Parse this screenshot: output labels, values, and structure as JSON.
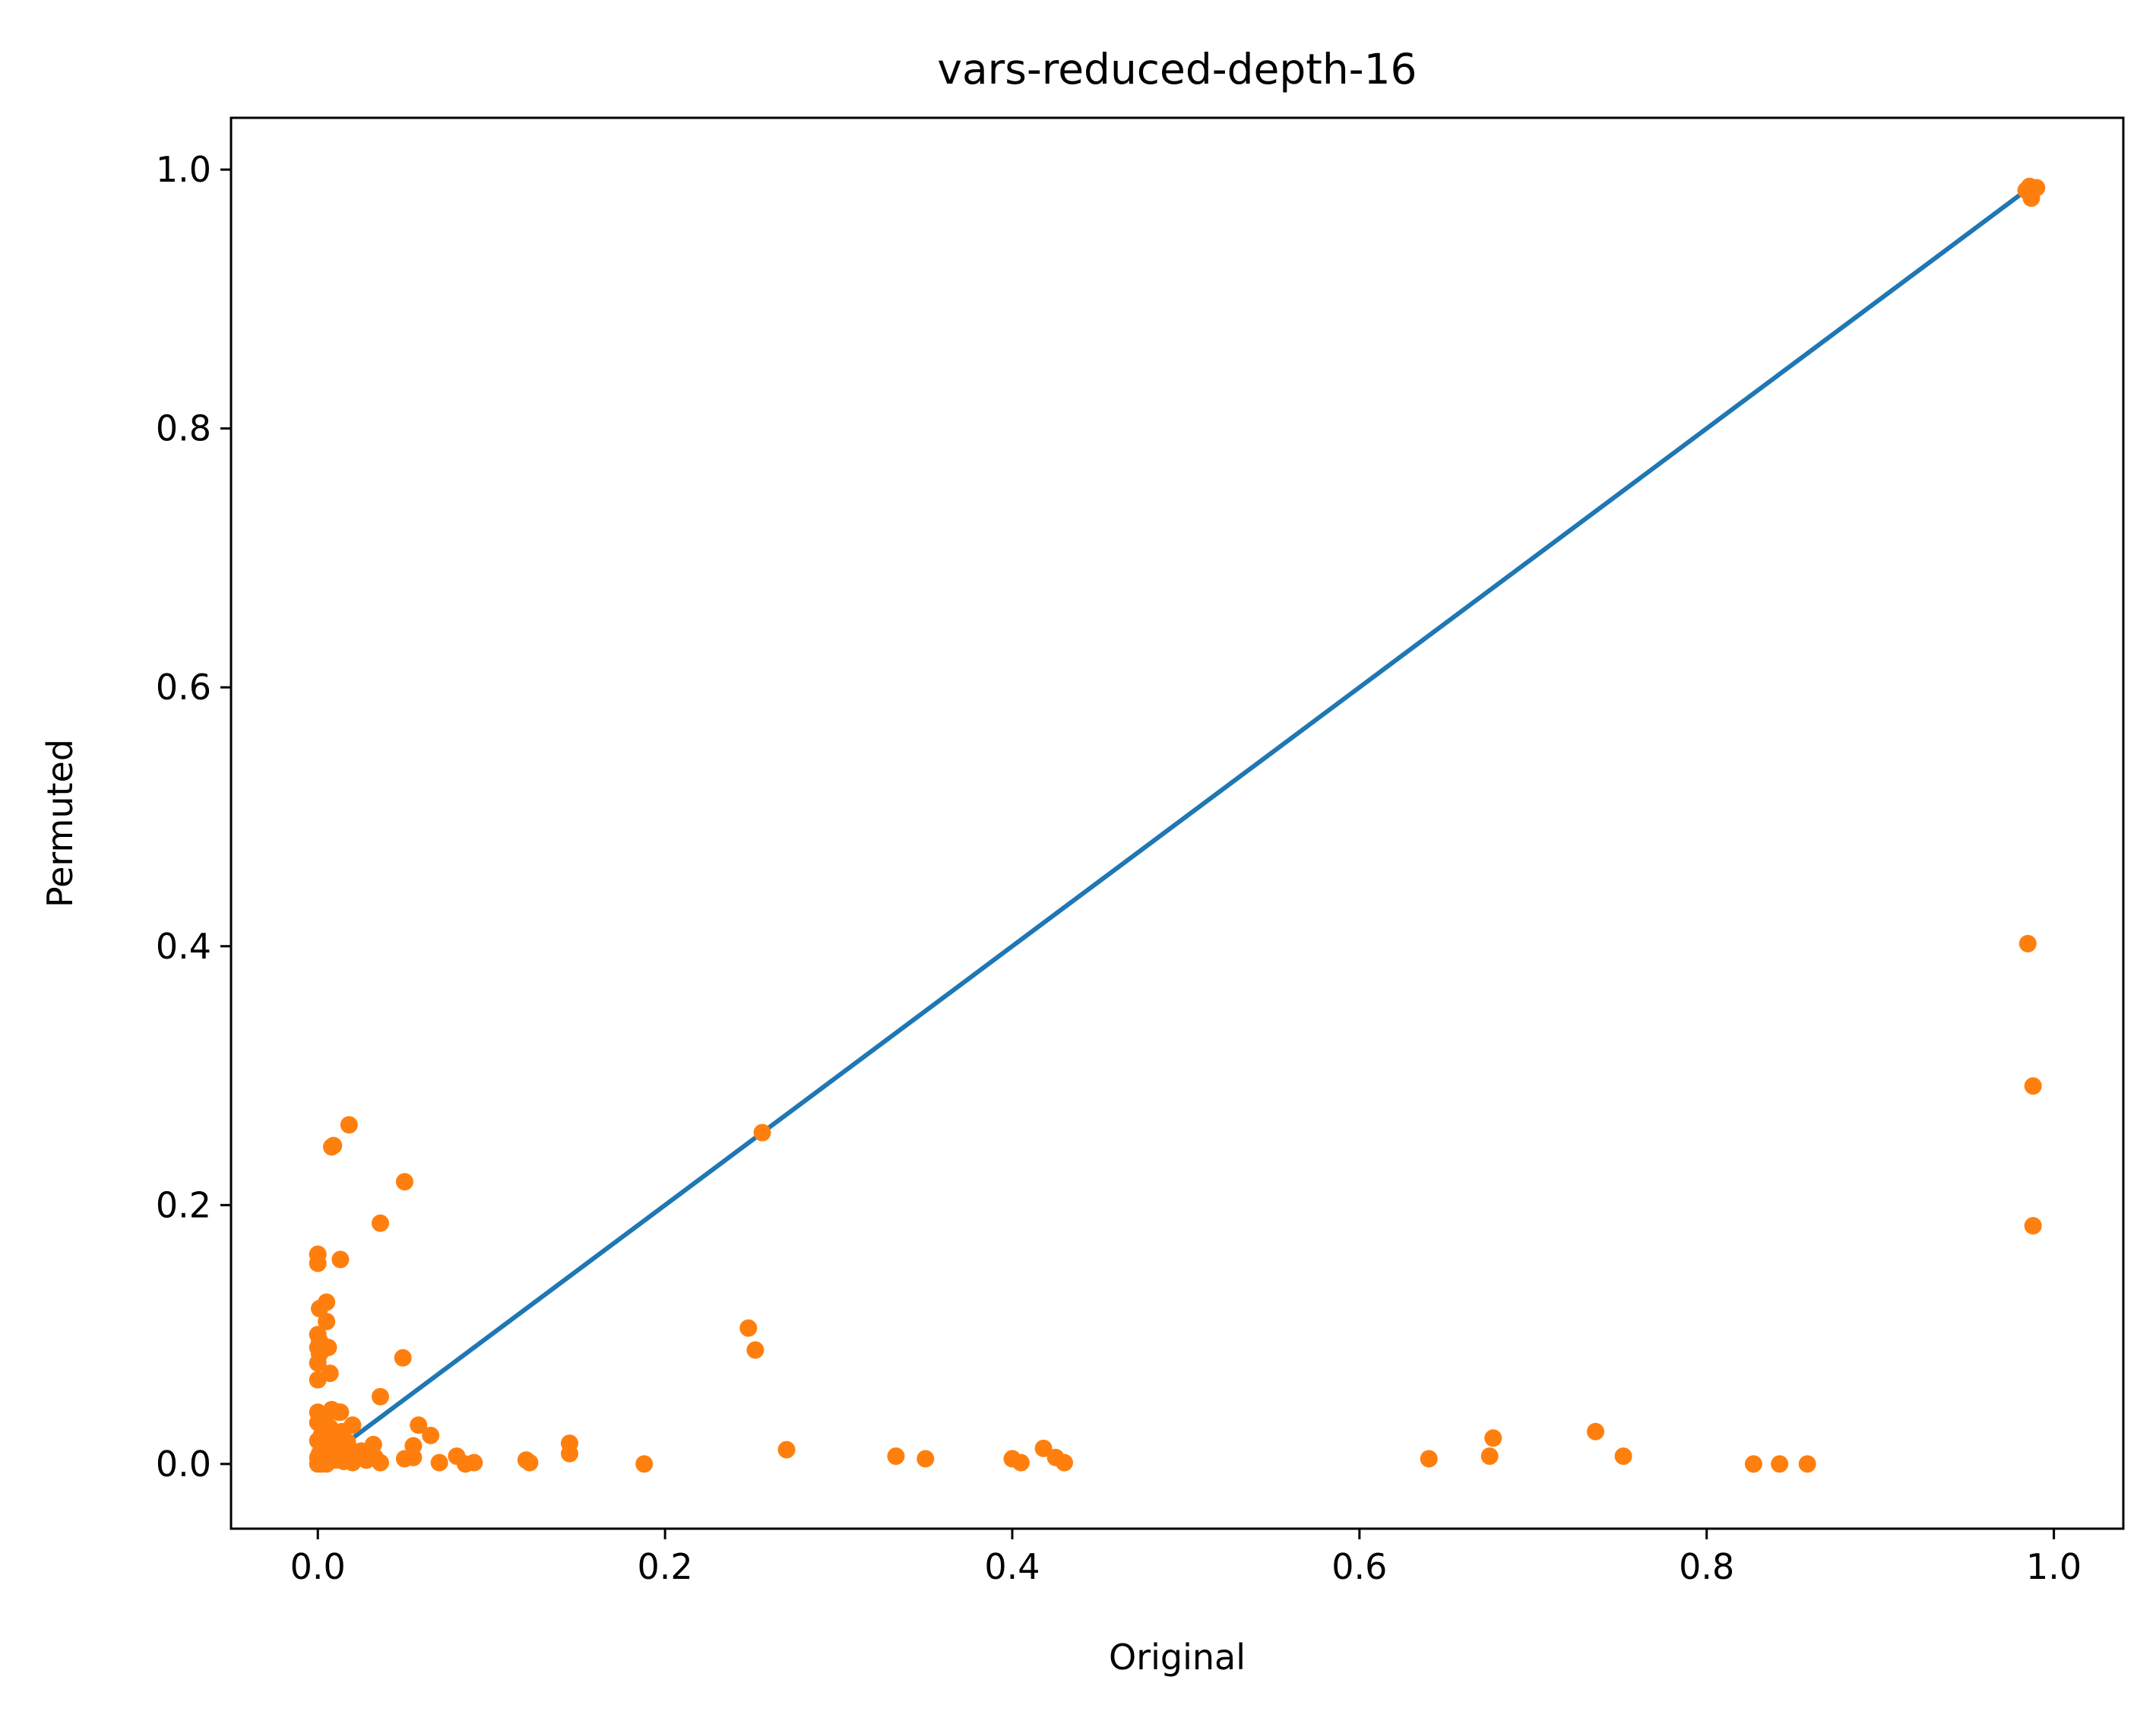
{
  "chart_data": {
    "type": "scatter",
    "title": "vars-reduced-depth-16",
    "xlabel": "Original",
    "ylabel": "Permuted",
    "xlim": [
      -0.05,
      1.04
    ],
    "ylim": [
      -0.05,
      1.04
    ],
    "xticks": [
      "0.0",
      "0.2",
      "0.4",
      "0.6",
      "0.8",
      "1.0"
    ],
    "yticks": [
      "0.0",
      "0.2",
      "0.4",
      "0.6",
      "0.8",
      "1.0"
    ],
    "xtick_values": [
      0.0,
      0.2,
      0.4,
      0.6,
      0.8,
      1.0
    ],
    "ytick_values": [
      0.0,
      0.2,
      0.4,
      0.6,
      0.8,
      1.0
    ],
    "grid": false,
    "colors": {
      "line": "#1f77b4",
      "points": "#ff7f0e"
    },
    "line": {
      "x": [
        0.02,
        0.985
      ],
      "y": [
        0.02,
        0.985
      ]
    },
    "points": {
      "x": [
        0.0,
        0.001,
        0.002,
        0.003,
        0.005,
        0.0,
        0.001,
        0.002,
        0.004,
        0.006,
        0.008,
        0.01,
        0.012,
        0.015,
        0.018,
        0.02,
        0.022,
        0.025,
        0.028,
        0.03,
        0.033,
        0.036,
        0.0,
        0.002,
        0.005,
        0.008,
        0.011,
        0.014,
        0.017,
        0.02,
        0.0,
        0.003,
        0.007,
        0.012,
        0.018,
        0.025,
        0.032,
        0.0,
        0.004,
        0.008,
        0.013,
        0.0,
        0.0,
        0.001,
        0.007,
        0.0,
        0.001,
        0.0,
        0.005,
        0.0,
        0.005,
        0.006,
        0.0,
        0.001,
        0.013,
        0.008,
        0.009,
        0.018,
        0.036,
        0.05,
        0.049,
        0.036,
        0.022,
        0.028,
        0.055,
        0.058,
        0.065,
        0.05,
        0.055,
        0.07,
        0.08,
        0.085,
        0.09,
        0.12,
        0.122,
        0.145,
        0.145,
        0.188,
        0.248,
        0.252,
        0.256,
        0.27,
        0.333,
        0.35,
        0.4,
        0.405,
        0.418,
        0.425,
        0.43,
        0.64,
        0.675,
        0.677,
        0.736,
        0.752,
        0.827,
        0.842,
        0.858,
        0.984,
        0.988,
        0.987,
        0.985,
        0.986,
        0.99,
        0.985,
        0.988
      ],
      "y": [
        0.0,
        0.001,
        0.0,
        0.002,
        0.0,
        0.005,
        0.008,
        0.01,
        0.006,
        0.012,
        0.004,
        0.003,
        0.007,
        0.002,
        0.009,
        0.001,
        0.004,
        0.006,
        0.003,
        0.008,
        0.005,
        0.001,
        0.018,
        0.022,
        0.015,
        0.02,
        0.012,
        0.025,
        0.017,
        0.03,
        0.032,
        0.038,
        0.028,
        0.04,
        0.012,
        0.01,
        0.015,
        0.04,
        0.035,
        0.042,
        0.04,
        0.065,
        0.078,
        0.085,
        0.07,
        0.1,
        0.12,
        0.155,
        0.125,
        0.162,
        0.11,
        0.09,
        0.09,
        0.095,
        0.158,
        0.245,
        0.246,
        0.262,
        0.186,
        0.218,
        0.082,
        0.052,
        0.008,
        0.003,
        0.005,
        0.03,
        0.022,
        0.004,
        0.014,
        0.001,
        0.006,
        0.0,
        0.001,
        0.003,
        0.001,
        0.016,
        0.008,
        0.0,
        0.105,
        0.088,
        0.256,
        0.011,
        0.006,
        0.004,
        0.004,
        0.001,
        0.012,
        0.005,
        0.001,
        0.004,
        0.006,
        0.02,
        0.025,
        0.006,
        0.0,
        0.0,
        0.0,
        0.984,
        0.986,
        0.978,
        0.985,
        0.987,
        0.986,
        0.402,
        0.292
      ],
      "extra": {
        "x": [
          0.988
        ],
        "y": [
          0.184
        ]
      }
    }
  }
}
